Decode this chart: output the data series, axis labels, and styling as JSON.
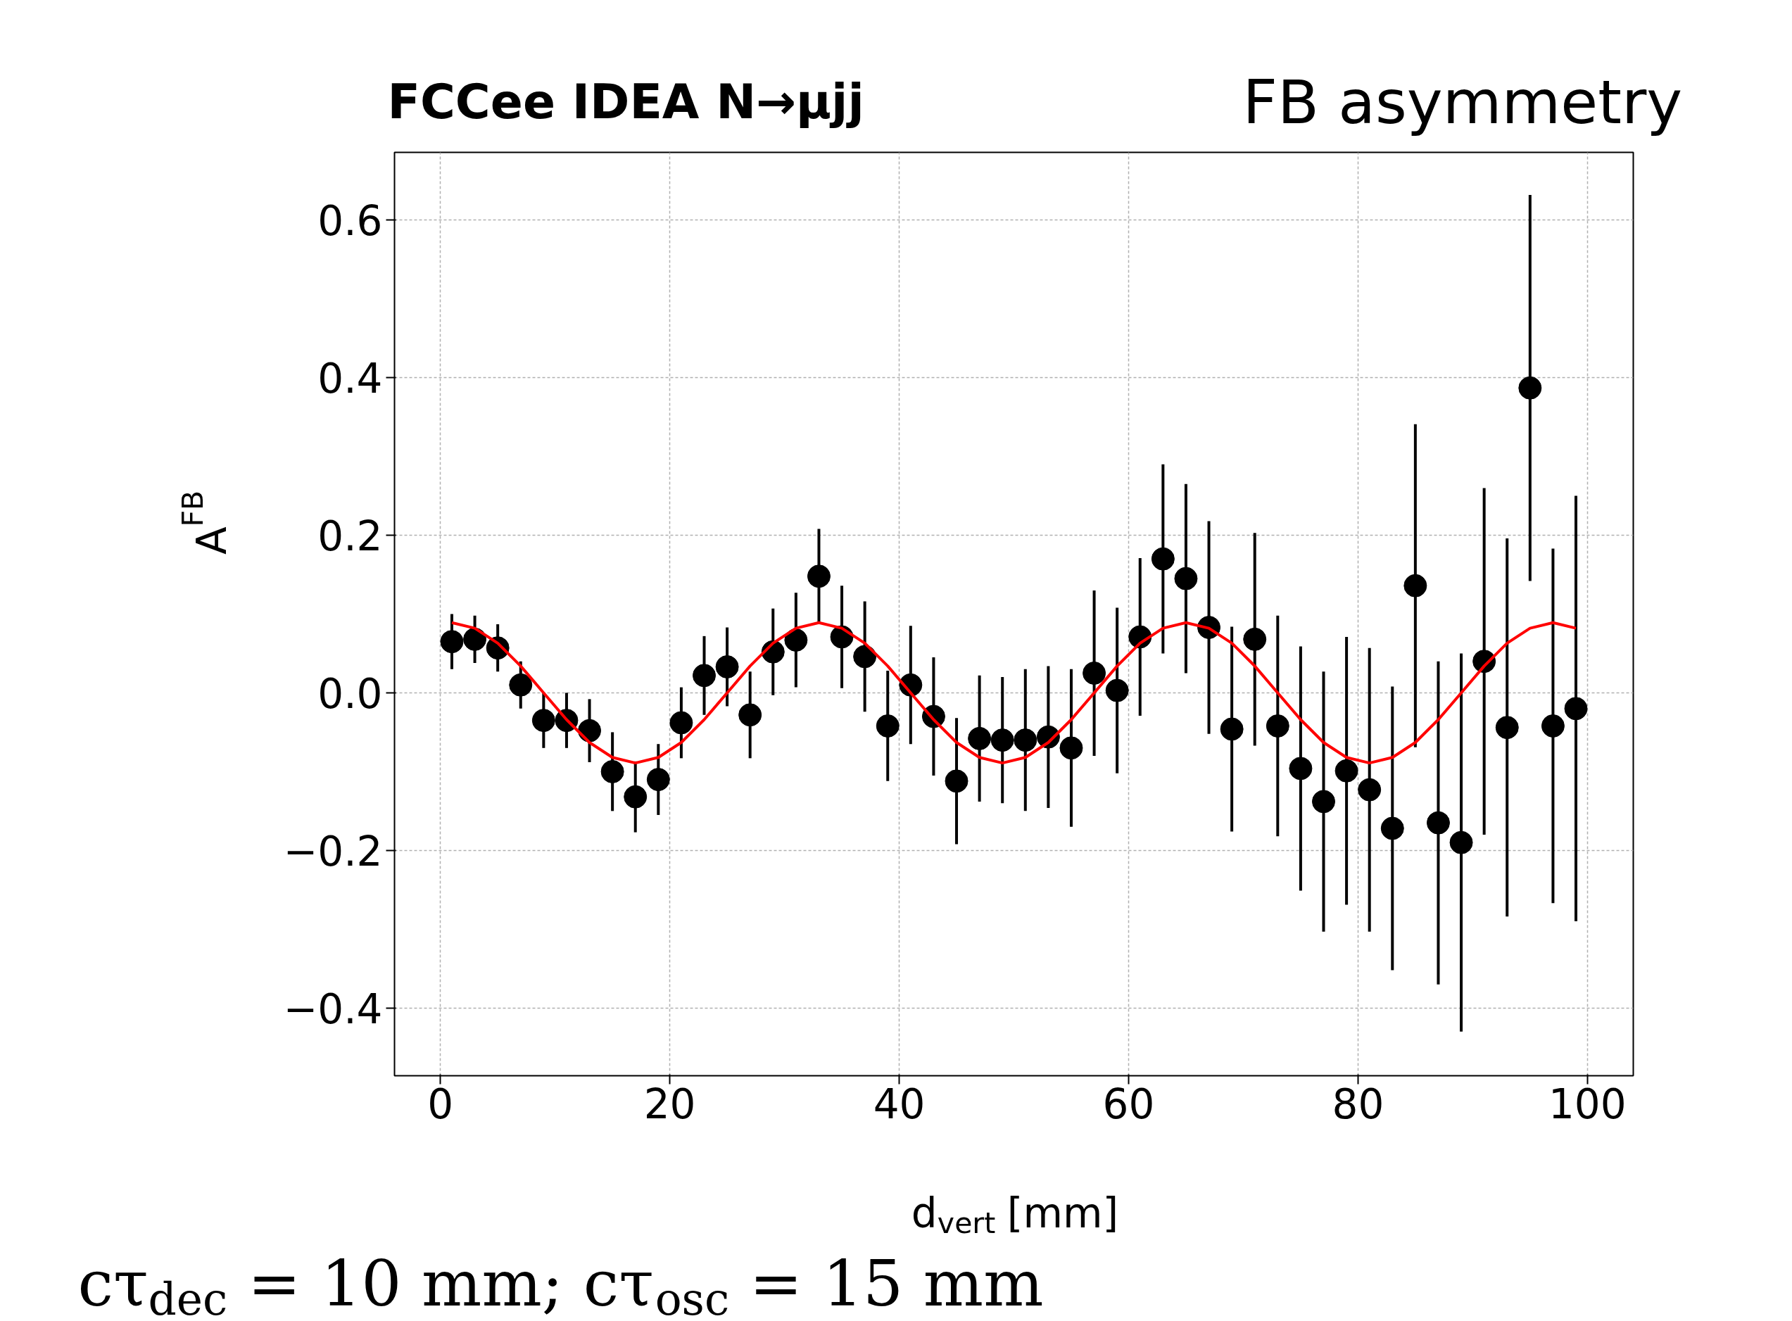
{
  "chart_data": {
    "type": "scatter",
    "title": "FCCee IDEA  N→μjj",
    "xlabel": "d$_{vert}$ [mm]",
    "ylabel": "A$^{FB}$",
    "annotations": [
      "FB asymmetry",
      "cτ$_{dec}$ = 10 mm; cτ$_{osc}$ = 15 mm"
    ],
    "xlim": [
      -4,
      104
    ],
    "ylim": [
      -0.486,
      0.686
    ],
    "xticks": [
      0,
      20,
      40,
      60,
      80,
      100
    ],
    "yticks": [
      {
        "value": -0.4,
        "label": "−0.4"
      },
      {
        "value": -0.2,
        "label": "−0.2"
      },
      {
        "value": 0,
        "label": "0.0"
      },
      0.2,
      0.4,
      0.6
    ],
    "grid": true,
    "series": [
      {
        "type": "scatter",
        "marker": "circle",
        "color": "#000000",
        "x": [
          1,
          3,
          5,
          7,
          9,
          11,
          13,
          15,
          17,
          19,
          21,
          23,
          25,
          27,
          29,
          31,
          33,
          35,
          37,
          39,
          41,
          43,
          45,
          47,
          49,
          51,
          53,
          55,
          57,
          59,
          61,
          63,
          65,
          67,
          69,
          71,
          73,
          75,
          77,
          79,
          81,
          83,
          85,
          87,
          89,
          91,
          93,
          95,
          97,
          99
        ],
        "values": [
          0.065,
          0.068,
          0.057,
          0.01,
          -0.035,
          -0.035,
          -0.048,
          -0.1,
          -0.132,
          -0.11,
          -0.038,
          0.022,
          0.033,
          -0.028,
          0.052,
          0.067,
          0.148,
          0.071,
          0.046,
          -0.042,
          0.01,
          -0.03,
          -0.112,
          -0.058,
          -0.06,
          -0.06,
          -0.056,
          -0.07,
          0.025,
          0.003,
          0.071,
          0.17,
          0.145,
          0.083,
          -0.046,
          0.068,
          -0.042,
          -0.096,
          -0.138,
          -0.099,
          -0.123,
          -0.172,
          0.136,
          -0.165,
          -0.19,
          0.04,
          -0.044,
          0.387,
          -0.042,
          -0.02
        ],
        "errors": [
          0.035,
          0.03,
          0.03,
          0.03,
          0.035,
          0.035,
          0.04,
          0.05,
          0.045,
          0.045,
          0.045,
          0.05,
          0.05,
          0.055,
          0.055,
          0.06,
          0.06,
          0.065,
          0.07,
          0.07,
          0.075,
          0.075,
          0.08,
          0.08,
          0.08,
          0.09,
          0.09,
          0.1,
          0.105,
          0.105,
          0.1,
          0.12,
          0.12,
          0.135,
          0.13,
          0.135,
          0.14,
          0.155,
          0.165,
          0.17,
          0.18,
          0.18,
          0.205,
          0.205,
          0.24,
          0.22,
          0.24,
          0.245,
          0.225,
          0.27
        ]
      },
      {
        "type": "line",
        "color": "#ff0000",
        "line_style": "solid",
        "x": [
          1,
          3,
          5,
          7,
          9,
          11,
          13,
          15,
          17,
          19,
          21,
          23,
          25,
          27,
          29,
          31,
          33,
          35,
          37,
          39,
          41,
          43,
          45,
          47,
          49,
          51,
          53,
          55,
          57,
          59,
          61,
          63,
          65,
          67,
          69,
          71,
          73,
          75,
          77,
          79,
          81,
          83,
          85,
          87,
          89,
          91,
          93,
          95,
          97,
          99
        ],
        "values": [
          0.089,
          0.082,
          0.063,
          0.034,
          0,
          -0.034,
          -0.063,
          -0.082,
          -0.089,
          -0.082,
          -0.063,
          -0.034,
          0,
          0.034,
          0.063,
          0.082,
          0.089,
          0.082,
          0.063,
          0.034,
          0,
          -0.034,
          -0.063,
          -0.082,
          -0.089,
          -0.082,
          -0.063,
          -0.034,
          0,
          0.034,
          0.063,
          0.082,
          0.089,
          0.082,
          0.063,
          0.034,
          0,
          -0.034,
          -0.063,
          -0.082,
          -0.089,
          -0.082,
          -0.063,
          -0.034,
          0,
          0.034,
          0.063,
          0.082,
          0.089,
          0.082
        ]
      }
    ]
  }
}
